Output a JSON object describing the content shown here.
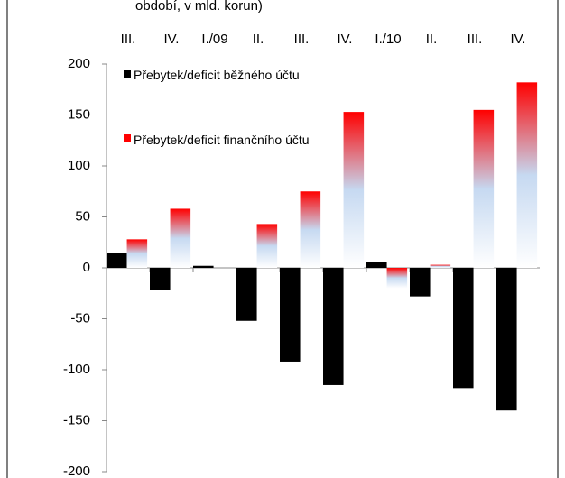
{
  "chart_data": {
    "type": "bar",
    "title": "období, v mld. korun)",
    "categories": [
      "III.",
      "IV.",
      "I./09",
      "II.",
      "III.",
      "IV.",
      "I./10",
      "II.",
      "III.",
      "IV."
    ],
    "series": [
      {
        "name": "Přebytek/deficit běžného účtu",
        "color": "#000000",
        "values": [
          15,
          -22,
          2,
          -52,
          -92,
          -115,
          6,
          -28,
          -118,
          -140
        ]
      },
      {
        "name": "Přebytek/deficit finančního účtu",
        "color": "#ff0000",
        "values": [
          28,
          58,
          0,
          43,
          75,
          153,
          -20,
          3,
          155,
          182
        ]
      }
    ],
    "ylim": [
      -200,
      200
    ],
    "yticks": [
      -200,
      -150,
      -100,
      -50,
      0,
      50,
      100,
      150,
      200
    ],
    "legend": "top-left"
  }
}
